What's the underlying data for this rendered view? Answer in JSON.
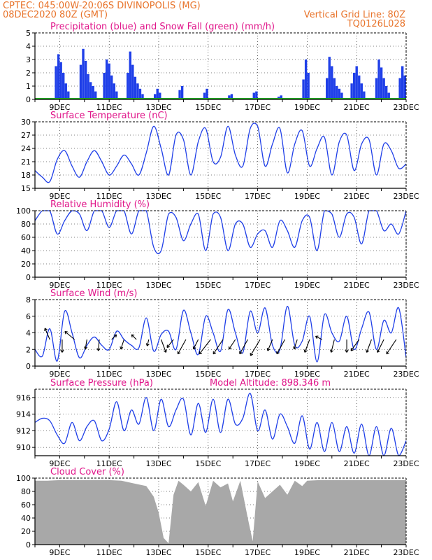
{
  "header": {
    "line1_left": "CPTEC:   045:00W-20:06S   DIVINOPOLIS (MG)",
    "line2_left": "08DEC2020 80Z (GMT)",
    "line2_right": "Vertical Grid Line: 80Z",
    "line3_right": "TQ0126L028"
  },
  "colors": {
    "header": "#e8732a",
    "title": "#e0168a",
    "series": "#1f3fe8",
    "snow": "#22aa22",
    "cloud": "#a8a8a8",
    "frame": "#000000"
  },
  "x_axis": {
    "start_day": 8.0,
    "end_day": 23.0,
    "tick_days": [
      9,
      11,
      13,
      15,
      17,
      19,
      21,
      23
    ],
    "tick_labels": [
      "9DEC",
      "11DEC",
      "13DEC",
      "15DEC",
      "17DEC",
      "19DEC",
      "21DEC",
      "23DEC"
    ]
  },
  "chart_data": [
    {
      "type": "bar",
      "title": "Precipitation (blue) and Snow Fall (green) (mm/h)",
      "ylim": [
        0,
        5
      ],
      "yticks": [
        "0",
        "1",
        "2",
        "3",
        "4",
        "5"
      ],
      "series": [
        {
          "name": "Precipitation",
          "color": "blue",
          "x": [
            8.85,
            8.95,
            9.05,
            9.15,
            9.25,
            9.35,
            9.85,
            9.95,
            10.05,
            10.15,
            10.25,
            10.35,
            10.45,
            10.8,
            10.9,
            11.0,
            11.1,
            11.2,
            11.3,
            11.75,
            11.85,
            11.95,
            12.05,
            12.15,
            12.25,
            12.35,
            12.85,
            12.95,
            13.05,
            13.85,
            13.95,
            14.85,
            14.95,
            15.85,
            15.95,
            16.85,
            16.95,
            17.85,
            17.95,
            18.85,
            18.95,
            19.05,
            19.8,
            19.9,
            20.0,
            20.1,
            20.2,
            20.3,
            20.4,
            20.8,
            20.9,
            21.0,
            21.1,
            21.2,
            21.3,
            21.8,
            21.9,
            22.0,
            22.1,
            22.2,
            22.3,
            22.75,
            22.85,
            22.95
          ],
          "values": [
            2.5,
            3.4,
            2.8,
            2.0,
            1.2,
            0.6,
            2.6,
            3.8,
            2.9,
            1.9,
            1.3,
            1.0,
            0.6,
            2.0,
            3.0,
            2.7,
            1.8,
            1.2,
            0.6,
            2.0,
            3.6,
            2.6,
            1.7,
            1.2,
            0.8,
            0.4,
            0.4,
            0.8,
            0.5,
            0.7,
            1.0,
            0.5,
            0.8,
            0.3,
            0.4,
            0.5,
            0.6,
            0.2,
            0.3,
            1.5,
            3.0,
            2.0,
            1.6,
            3.2,
            2.5,
            1.6,
            1.0,
            0.8,
            0.5,
            1.2,
            2.0,
            2.5,
            1.8,
            1.2,
            0.6,
            1.6,
            3.0,
            2.4,
            1.6,
            1.0,
            0.5,
            1.6,
            2.5,
            1.8
          ]
        },
        {
          "name": "Snow Fall",
          "color": "green",
          "x": [
            8.0,
            23.0
          ],
          "values": [
            0,
            0
          ]
        }
      ]
    },
    {
      "type": "line",
      "title": "Surface Temperature (nC)",
      "ylim": [
        15,
        30
      ],
      "yticks": [
        "15",
        "18",
        "21",
        "24",
        "27",
        "30"
      ],
      "x": [
        8.0,
        8.3,
        8.6,
        8.9,
        9.2,
        9.5,
        9.8,
        10.1,
        10.4,
        10.7,
        11.0,
        11.3,
        11.6,
        11.9,
        12.2,
        12.5,
        12.8,
        13.1,
        13.4,
        13.7,
        14.0,
        14.3,
        14.6,
        14.9,
        15.2,
        15.5,
        15.8,
        16.1,
        16.4,
        16.7,
        17.0,
        17.3,
        17.6,
        17.9,
        18.2,
        18.5,
        18.8,
        19.1,
        19.4,
        19.7,
        20.0,
        20.3,
        20.6,
        20.9,
        21.2,
        21.5,
        21.8,
        22.1,
        22.4,
        22.7,
        23.0
      ],
      "values": [
        19.0,
        17.5,
        16.5,
        21.5,
        23.5,
        20.0,
        17.5,
        21.0,
        23.5,
        21.0,
        18.0,
        20.0,
        22.5,
        20.5,
        18.0,
        23.0,
        29.0,
        24.0,
        18.0,
        27.0,
        26.0,
        18.0,
        25.5,
        28.5,
        21.0,
        22.0,
        29.0,
        22.5,
        20.0,
        28.5,
        29.0,
        20.0,
        25.0,
        28.5,
        18.5,
        25.0,
        28.0,
        20.0,
        24.0,
        26.5,
        18.0,
        25.5,
        27.0,
        19.0,
        25.0,
        26.0,
        18.0,
        25.0,
        23.5,
        19.5,
        20.5
      ]
    },
    {
      "type": "line",
      "title": "Relative Humidity (%)",
      "ylim": [
        0,
        100
      ],
      "yticks": [
        "0",
        "20",
        "40",
        "60",
        "80",
        "100"
      ],
      "x": [
        8.0,
        8.3,
        8.6,
        8.9,
        9.2,
        9.5,
        9.8,
        10.1,
        10.4,
        10.7,
        11.0,
        11.3,
        11.6,
        11.9,
        12.2,
        12.5,
        12.8,
        13.1,
        13.4,
        13.7,
        14.0,
        14.3,
        14.6,
        14.9,
        15.2,
        15.5,
        15.8,
        16.1,
        16.4,
        16.7,
        17.0,
        17.3,
        17.6,
        17.9,
        18.2,
        18.5,
        18.8,
        19.1,
        19.4,
        19.7,
        20.0,
        20.3,
        20.6,
        20.9,
        21.2,
        21.5,
        21.8,
        22.1,
        22.4,
        22.7,
        23.0
      ],
      "values": [
        85,
        100,
        100,
        65,
        85,
        100,
        95,
        70,
        100,
        100,
        75,
        100,
        100,
        65,
        100,
        100,
        45,
        40,
        95,
        90,
        55,
        80,
        95,
        40,
        95,
        90,
        40,
        80,
        80,
        45,
        65,
        70,
        45,
        85,
        70,
        45,
        85,
        90,
        40,
        100,
        95,
        60,
        95,
        90,
        50,
        100,
        100,
        70,
        80,
        65,
        100
      ]
    },
    {
      "type": "line",
      "title": "Surface Wind (m/s)",
      "ylim": [
        0,
        8
      ],
      "yticks": [
        "0",
        "2",
        "4",
        "6",
        "8"
      ],
      "x": [
        8.0,
        8.3,
        8.6,
        8.9,
        9.2,
        9.5,
        9.8,
        10.1,
        10.4,
        10.7,
        11.0,
        11.3,
        11.6,
        11.9,
        12.2,
        12.5,
        12.8,
        13.1,
        13.4,
        13.7,
        14.0,
        14.3,
        14.6,
        14.9,
        15.2,
        15.5,
        15.8,
        16.1,
        16.4,
        16.7,
        17.0,
        17.3,
        17.6,
        17.9,
        18.2,
        18.5,
        18.8,
        19.1,
        19.4,
        19.7,
        20.0,
        20.3,
        20.6,
        20.9,
        21.2,
        21.5,
        21.8,
        22.1,
        22.4,
        22.7,
        23.0
      ],
      "values": [
        2.0,
        1.2,
        4.5,
        0.6,
        6.6,
        4.0,
        1.0,
        2.5,
        3.5,
        2.5,
        2.0,
        4.2,
        3.2,
        2.5,
        2.2,
        5.8,
        1.8,
        3.8,
        4.2,
        2.0,
        6.7,
        4.0,
        1.4,
        6.0,
        4.0,
        1.8,
        6.8,
        4.0,
        1.6,
        6.6,
        4.0,
        7.0,
        2.5,
        2.0,
        7.2,
        2.5,
        3.0,
        6.0,
        0.5,
        6.2,
        4.0,
        3.0,
        6.0,
        2.0,
        4.5,
        6.5,
        2.0,
        5.5,
        4.0,
        7.0,
        1.0
      ],
      "vectors": {
        "x": [
          8.6,
          9.1,
          9.6,
          10.1,
          10.6,
          11.1,
          11.6,
          12.1,
          12.6,
          13.1,
          13.6,
          14.1,
          14.6,
          15.1,
          15.6,
          16.1,
          16.6,
          17.1,
          17.6,
          18.1,
          18.6,
          19.1,
          19.6,
          20.1,
          20.6,
          21.1,
          21.6,
          22.1,
          22.6
        ],
        "u": [
          -1.5,
          0.0,
          -3.0,
          -0.5,
          -0.3,
          1.5,
          -1.0,
          -1.5,
          -0.5,
          1.5,
          -2.0,
          -2.5,
          -1.5,
          -3.5,
          -3.0,
          -2.0,
          -2.5,
          -3.0,
          -1.5,
          -2.5,
          -1.0,
          -1.5,
          -2.0,
          -1.0,
          0.0,
          -2.5,
          -1.5,
          -2.0,
          -3.0
        ],
        "v": [
          3.5,
          -4.0,
          2.5,
          -3.0,
          -3.5,
          1.5,
          -3.0,
          1.5,
          -2.0,
          -4.0,
          -2.5,
          -4.5,
          -3.0,
          -4.5,
          -4.5,
          -3.0,
          -4.5,
          -5.0,
          -3.5,
          -4.5,
          -3.0,
          -4.0,
          1.0,
          -4.0,
          -4.0,
          -3.5,
          -4.0,
          -4.0,
          -4.5
        ]
      }
    },
    {
      "type": "line",
      "title": "Surface Pressure (hPa)",
      "subtitle": "Model Altitude: 898.346 m",
      "ylim": [
        909,
        917
      ],
      "yticks": [
        "910",
        "912",
        "914",
        "916"
      ],
      "x": [
        8.0,
        8.3,
        8.6,
        8.9,
        9.2,
        9.5,
        9.8,
        10.1,
        10.4,
        10.7,
        11.0,
        11.3,
        11.6,
        11.9,
        12.2,
        12.5,
        12.8,
        13.1,
        13.4,
        13.7,
        14.0,
        14.3,
        14.6,
        14.9,
        15.2,
        15.5,
        15.8,
        16.1,
        16.4,
        16.7,
        17.0,
        17.3,
        17.6,
        17.9,
        18.2,
        18.5,
        18.8,
        19.1,
        19.4,
        19.7,
        20.0,
        20.3,
        20.6,
        20.9,
        21.2,
        21.5,
        21.8,
        22.1,
        22.4,
        22.7,
        23.0
      ],
      "values": [
        913.0,
        913.5,
        913.2,
        911.5,
        910.5,
        913.0,
        910.8,
        912.5,
        913.2,
        910.8,
        912.2,
        915.5,
        912.0,
        914.5,
        912.8,
        916.0,
        912.0,
        915.8,
        912.5,
        914.5,
        915.8,
        911.5,
        915.3,
        911.8,
        915.8,
        911.8,
        915.8,
        912.8,
        913.5,
        916.5,
        912.0,
        914.5,
        911.0,
        914.0,
        912.5,
        910.5,
        913.8,
        909.8,
        913.0,
        909.5,
        913.0,
        909.5,
        912.5,
        909.3,
        912.8,
        908.5,
        912.5,
        908.5,
        912.3,
        908.3,
        910.8
      ]
    },
    {
      "type": "area",
      "title": "Cloud Cover (%)",
      "ylim": [
        0,
        100
      ],
      "yticks": [
        "0",
        "20",
        "40",
        "60",
        "80",
        "100"
      ],
      "x": [
        8.0,
        8.5,
        9.0,
        9.5,
        10.0,
        10.5,
        11.0,
        11.5,
        12.0,
        12.5,
        12.8,
        13.0,
        13.2,
        13.4,
        13.6,
        13.8,
        14.0,
        14.3,
        14.6,
        14.9,
        15.2,
        15.5,
        15.8,
        16.0,
        16.3,
        16.6,
        16.8,
        17.0,
        17.3,
        17.6,
        17.9,
        18.2,
        18.5,
        18.8,
        19.0,
        19.5,
        20.0,
        20.5,
        21.0,
        21.5,
        22.0,
        22.5,
        23.0
      ],
      "values": [
        96,
        96,
        97,
        97,
        97,
        97,
        97,
        96,
        92,
        88,
        72,
        48,
        10,
        2,
        75,
        96,
        90,
        80,
        94,
        58,
        96,
        86,
        92,
        65,
        96,
        40,
        5,
        95,
        70,
        80,
        90,
        75,
        96,
        88,
        96,
        97,
        97,
        97,
        97,
        97,
        97,
        97,
        97
      ]
    }
  ]
}
